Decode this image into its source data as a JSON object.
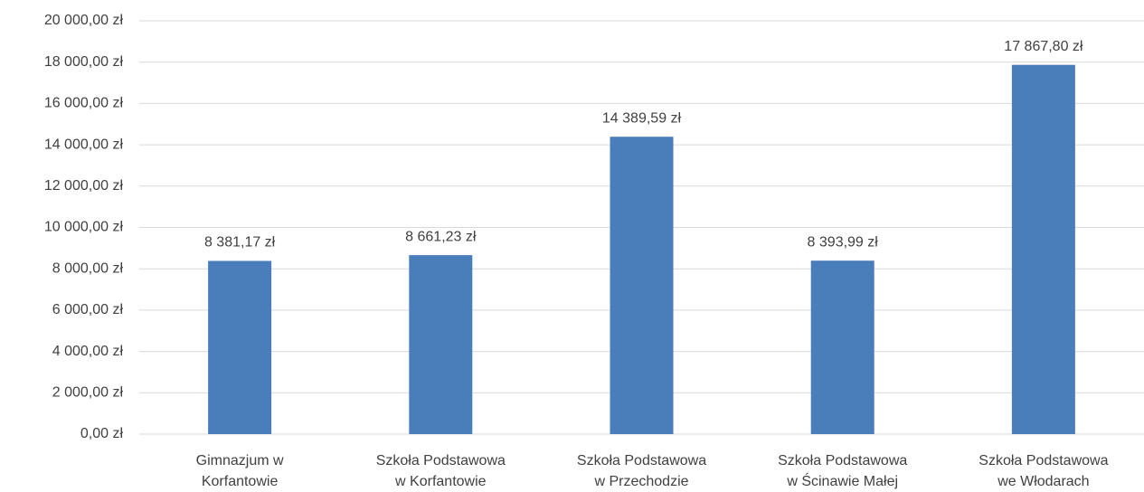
{
  "chart_data": {
    "type": "bar",
    "categories": [
      "Gimnazjum w\nKorfantowie",
      "Szkoła Podstawowa\nw Korfantowie",
      "Szkoła Podstawowa\nw Przechodzie",
      "Szkoła Podstawowa\nw Ścinawie Małej",
      "Szkoła Podstawowa\nwe Włodarach"
    ],
    "values": [
      8381.17,
      8661.23,
      14389.59,
      8393.99,
      17867.8
    ],
    "value_labels": [
      "8 381,17 zł",
      "8 661,23 zł",
      "14 389,59 zł",
      "8 393,99 zł",
      "17 867,80 zł"
    ],
    "color": "#4a7ebb",
    "ylim": [
      0,
      20000
    ],
    "yticks": [
      {
        "value": 0,
        "label": "0,00 zł"
      },
      {
        "value": 2000,
        "label": "2 000,00 zł"
      },
      {
        "value": 4000,
        "label": "4 000,00 zł"
      },
      {
        "value": 6000,
        "label": "6 000,00 zł"
      },
      {
        "value": 8000,
        "label": "8 000,00 zł"
      },
      {
        "value": 10000,
        "label": "10 000,00 zł"
      },
      {
        "value": 12000,
        "label": "12 000,00 zł"
      },
      {
        "value": 14000,
        "label": "14 000,00 zł"
      },
      {
        "value": 16000,
        "label": "16 000,00 zł"
      },
      {
        "value": 18000,
        "label": "18 000,00 zł"
      },
      {
        "value": 20000,
        "label": "20 000,00 zł"
      }
    ],
    "grid": true
  }
}
